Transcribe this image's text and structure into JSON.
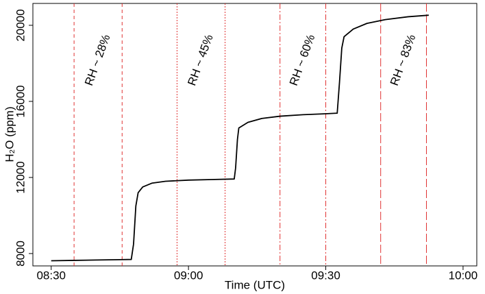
{
  "chart_data": {
    "type": "line",
    "xlabel": "Time (UTC)",
    "ylabel": "H₂O (ppm)",
    "x": [
      510,
      515,
      520,
      525,
      527.5,
      528,
      528.5,
      529,
      530,
      532,
      535,
      540,
      545,
      550,
      550.3,
      550.7,
      551,
      553,
      556,
      560,
      565,
      570,
      572.5,
      573,
      573.5,
      574,
      576,
      579,
      583,
      588,
      592.5
    ],
    "series": [
      {
        "color": "#000000",
        "values": [
          7620,
          7640,
          7660,
          7680,
          7690,
          8500,
          10500,
          11200,
          11500,
          11700,
          11800,
          11860,
          11890,
          11920,
          12500,
          14000,
          14600,
          14900,
          15100,
          15220,
          15300,
          15350,
          15380,
          17000,
          18800,
          19400,
          19800,
          20100,
          20300,
          20450,
          20530
        ]
      }
    ],
    "xlim": [
      506,
      603
    ],
    "xticks": [
      {
        "value": 510,
        "label": "08:30"
      },
      {
        "value": 540,
        "label": "09:00"
      },
      {
        "value": 570,
        "label": "09:30"
      },
      {
        "value": 600,
        "label": "10:00"
      }
    ],
    "ylim": [
      7350,
      21150
    ],
    "yticks": [
      8000,
      12000,
      16000,
      20000
    ],
    "vlines": [
      515,
      525.5,
      537.5,
      548,
      560,
      570,
      582,
      592
    ],
    "vline_color": "#e03030",
    "vline_dashes": [
      "5,4",
      "5,4",
      "2,2",
      "2,2",
      "8,3,2,3",
      "8,3,2,3",
      "12,4",
      "12,4"
    ],
    "annotations": [
      "RH ~ 28%",
      "RH ~ 45%",
      "RH ~ 60%",
      "RH ~ 83%"
    ]
  }
}
